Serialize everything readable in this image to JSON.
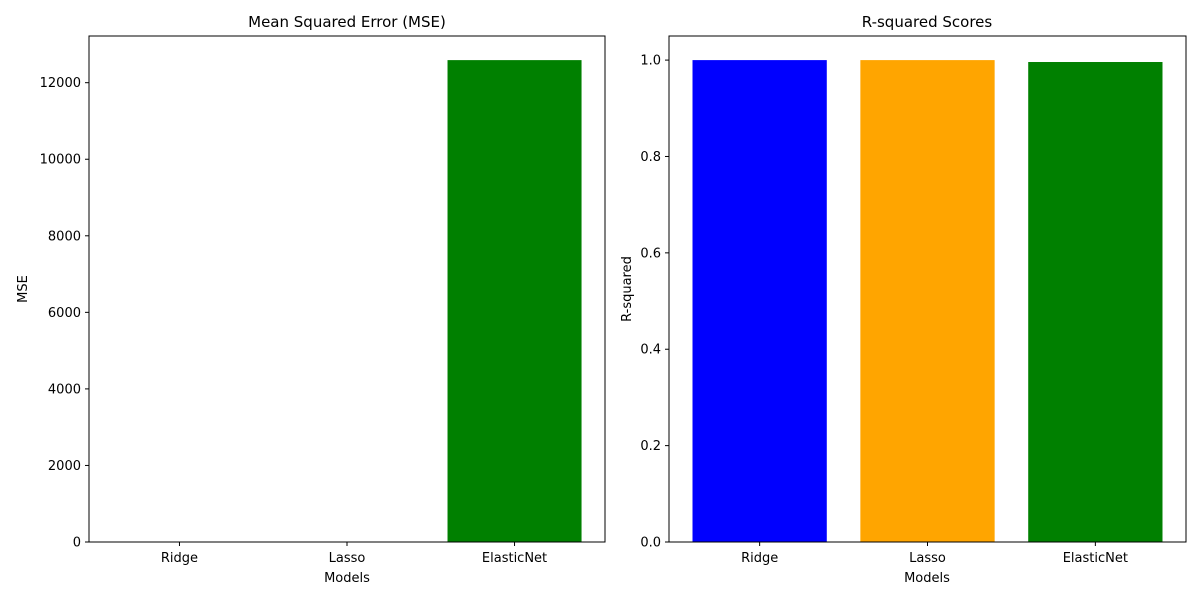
{
  "chart_data": [
    {
      "type": "bar",
      "title": "Mean Squared Error (MSE)",
      "xlabel": "Models",
      "ylabel": "MSE",
      "categories": [
        "Ridge",
        "Lasso",
        "ElasticNet"
      ],
      "values": [
        0.5,
        0.5,
        12590
      ],
      "colors": [
        "#0000ff",
        "#ffa500",
        "#008000"
      ],
      "ylim": [
        0,
        13220
      ],
      "yticks": [
        0,
        2000,
        4000,
        6000,
        8000,
        10000,
        12000
      ],
      "ytick_labels": [
        "0",
        "2000",
        "4000",
        "6000",
        "8000",
        "10000",
        "12000"
      ],
      "grid": false,
      "legend": "none"
    },
    {
      "type": "bar",
      "title": "R-squared Scores",
      "xlabel": "Models",
      "ylabel": "R-squared",
      "categories": [
        "Ridge",
        "Lasso",
        "ElasticNet"
      ],
      "values": [
        0.99998,
        0.99998,
        0.99603
      ],
      "colors": [
        "#0000ff",
        "#ffa500",
        "#008000"
      ],
      "ylim": [
        0,
        1.05
      ],
      "yticks": [
        0.0,
        0.2,
        0.4,
        0.6,
        0.8,
        1.0
      ],
      "ytick_labels": [
        "0.0",
        "0.2",
        "0.4",
        "0.6",
        "0.8",
        "1.0"
      ],
      "grid": false,
      "legend": "none"
    }
  ]
}
